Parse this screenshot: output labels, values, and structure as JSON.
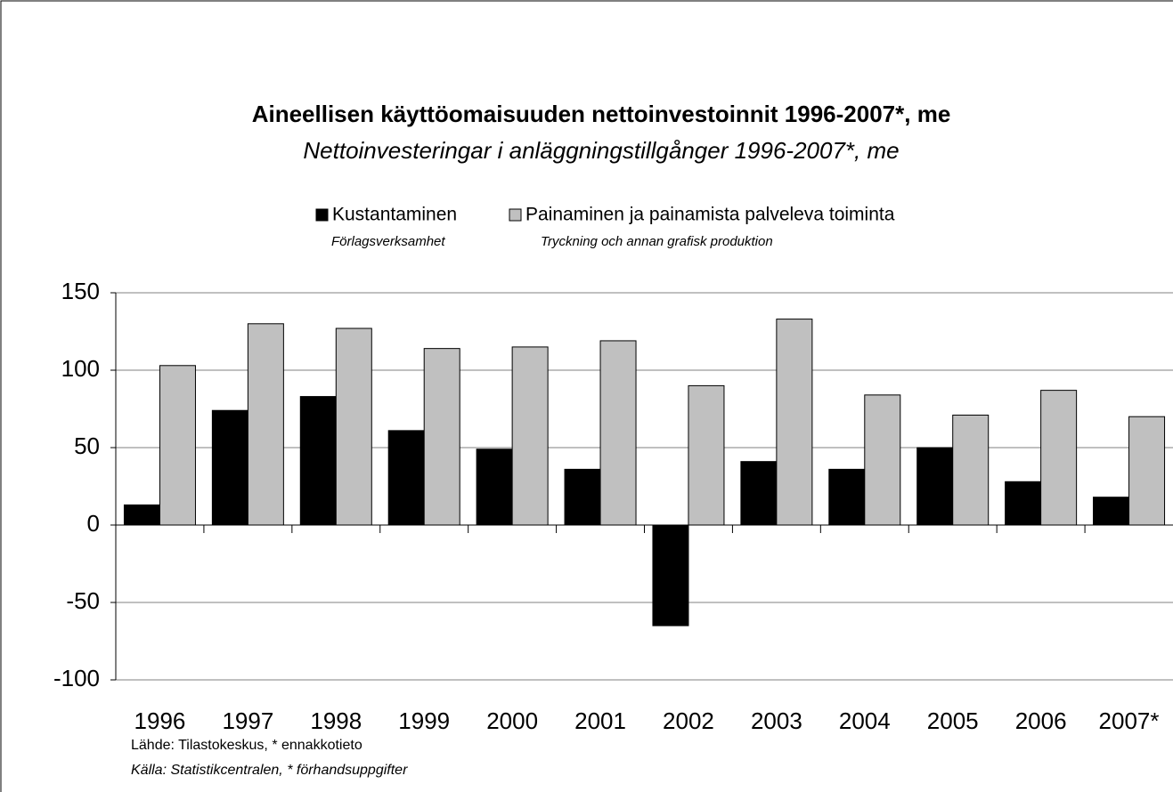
{
  "chart_data": {
    "type": "bar",
    "title": "Aineellisen käyttöomaisuuden nettoinvestoinnit 1996-2007*, me",
    "subtitle": "Nettoinvesteringar i anläggningstillgånger 1996-2007*, me",
    "categories": [
      "1996",
      "1997",
      "1998",
      "1999",
      "2000",
      "2001",
      "2002",
      "2003",
      "2004",
      "2005",
      "2006",
      "2007*"
    ],
    "series": [
      {
        "name": "Kustantaminen",
        "subname": "Förlagsverksamhet",
        "color": "#000000",
        "values": [
          13,
          74,
          83,
          61,
          49,
          36,
          -65,
          41,
          36,
          50,
          28,
          18
        ]
      },
      {
        "name": "Painaminen ja painamista palveleva toiminta",
        "subname": "Tryckning och annan grafisk produktion",
        "color": "#c0c0c0",
        "values": [
          103,
          130,
          127,
          114,
          115,
          119,
          90,
          133,
          84,
          71,
          87,
          70
        ]
      }
    ],
    "ylim": [
      -100,
      150
    ],
    "yticks": [
      -100,
      -50,
      0,
      50,
      100,
      150
    ],
    "grid": true,
    "source": [
      "Lähde: Tilastokeskus, * ennakkotieto",
      "Källa: Statistikcentralen, * förhandsuppgifter"
    ]
  }
}
